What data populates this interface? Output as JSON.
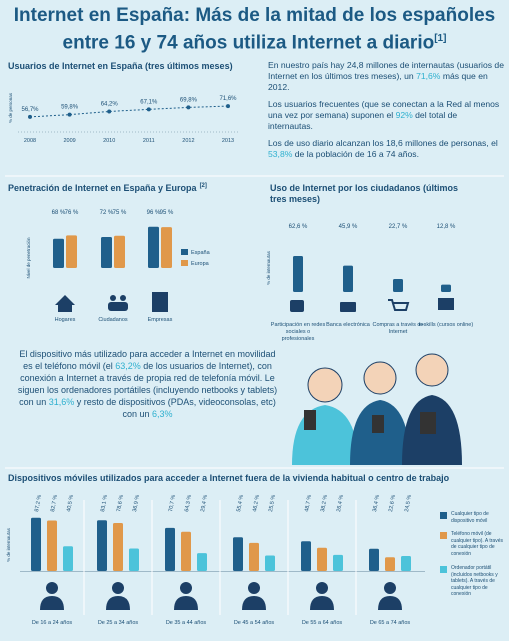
{
  "title": "Internet en España: Más de la mitad de los españoles entre 16 y 74 años utiliza Internet a diario",
  "title_note": "[1]",
  "paragraphs": [
    [
      {
        "text": "En nuestro país hay 24,8 millones de internautas (usuarios de Internet en los últimos tres meses), un "
      },
      {
        "text": "71,6%",
        "highlight": true
      },
      {
        "text": " más que en 2012."
      }
    ],
    [
      {
        "text": "Los usuarios frecuentes (que se conectan a la Red al menos una vez por semana) suponen el "
      },
      {
        "text": "92%",
        "highlight": true
      },
      {
        "text": " del total de internautas."
      }
    ],
    [
      {
        "text": "Los de uso diario alcanzan los 18,6 millones de personas, el "
      },
      {
        "text": "53,8%",
        "highlight": true
      },
      {
        "text": " de la población de 16 a 74 años."
      }
    ],
    [
      {
        "text": "El dispositivo más utilizado para acceder a Internet en movilidad es el teléfono móvil (el "
      },
      {
        "text": "63,2%",
        "highlight": true
      },
      {
        "text": " de los usuarios de Internet), con conexión a Internet a través de propia red de telefonía móvil. Le siguen los ordenadores portátiles (incluyendo netbooks y tablets) con un "
      },
      {
        "text": "31,6%",
        "highlight": true
      },
      {
        "text": " y resto de dispositivos (PDAs, videoconsolas, etc) con un "
      },
      {
        "text": "6,3%",
        "highlight": true
      }
    ]
  ],
  "chart_data": [
    {
      "type": "line",
      "title": "Usuarios de Internet en España (tres últimos meses)",
      "ylabel": "% de personas",
      "categories": [
        "2008",
        "2009",
        "2010",
        "2011",
        "2012",
        "2013"
      ],
      "values": [
        56.7,
        59.8,
        64.2,
        67.1,
        69.8,
        71.6
      ],
      "value_labels": [
        "56,7%",
        "59,8%",
        "64,2%",
        "67,1%",
        "69,8%",
        "71,6%"
      ],
      "color": "#1f5f8b",
      "ylim": [
        40,
        80
      ]
    },
    {
      "type": "bar",
      "title": "Penetración de Internet en España y Europa",
      "title_note": "[2]",
      "ylabel": "Nivel de penetración",
      "categories": [
        "Hogares",
        "Ciudadanos",
        "Empresas"
      ],
      "ylim": [
        0,
        100
      ],
      "series": [
        {
          "name": "España",
          "color": "#1f5f8b",
          "values": [
            68,
            72,
            96
          ],
          "value_labels": [
            "68 %",
            "72 %",
            "96 %"
          ]
        },
        {
          "name": "Europa",
          "color": "#e0984a",
          "values": [
            76,
            75,
            95
          ],
          "value_labels": [
            "76 %",
            "75 %",
            "95 %"
          ]
        }
      ]
    },
    {
      "type": "bar",
      "title": "Uso de Internet por los ciudadanos (últimos tres meses)",
      "ylabel": "% de internautas",
      "categories": [
        "Participación en redes sociales o profesionales",
        "Banca electrónica",
        "Compras a través de Internet",
        "e-skills (cursos online)"
      ],
      "ylim": [
        0,
        100
      ],
      "series": [
        {
          "color": "#1f5f8b",
          "values": [
            62.6,
            45.9,
            22.7,
            12.8
          ],
          "value_labels": [
            "62,6 %",
            "45,9 %",
            "22,7 %",
            "12,8 %"
          ]
        }
      ]
    },
    {
      "type": "bar",
      "title": "Dispositivos móviles utilizados para acceder a Internet fuera de la vivienda habitual o centro de trabajo",
      "ylabel": "% de internautas",
      "categories": [
        "De 16 a 24 años",
        "De 25 a 34 años",
        "De 35 a 44 años",
        "De 45 a 54 años",
        "De 55 a 64 años",
        "De 65 a 74 años"
      ],
      "ylim": [
        0,
        100
      ],
      "series": [
        {
          "name": "Cualquier tipo de dispositivo móvil",
          "color": "#1f5f8b",
          "values": [
            87.2,
            83.1,
            70.7,
            55.4,
            48.7,
            36.4
          ],
          "value_labels": [
            "87,2 %",
            "83,1 %",
            "70,7 %",
            "55,4 %",
            "48,7 %",
            "36,4 %"
          ]
        },
        {
          "name": "Teléfono móvil (de cualquier tipo). A través de cualquier tipo de conexión",
          "color": "#e0984a",
          "values": [
            82.7,
            78.6,
            64.3,
            46.2,
            38.2,
            22.6
          ],
          "value_labels": [
            "82,7 %",
            "78,6 %",
            "64,3 %",
            "46,2 %",
            "38,2 %",
            "22,6 %"
          ]
        },
        {
          "name": "Ordenador portátil (incluidos netbooks y tablets). A través de cualquier tipo de conexión",
          "color": "#4cc3da",
          "values": [
            40.5,
            36.9,
            29.4,
            25.5,
            26.4,
            24.5
          ],
          "value_labels": [
            "40,5 %",
            "36,9 %",
            "29,4 %",
            "25,5 %",
            "26,4 %",
            "24,5 %"
          ]
        }
      ]
    }
  ]
}
